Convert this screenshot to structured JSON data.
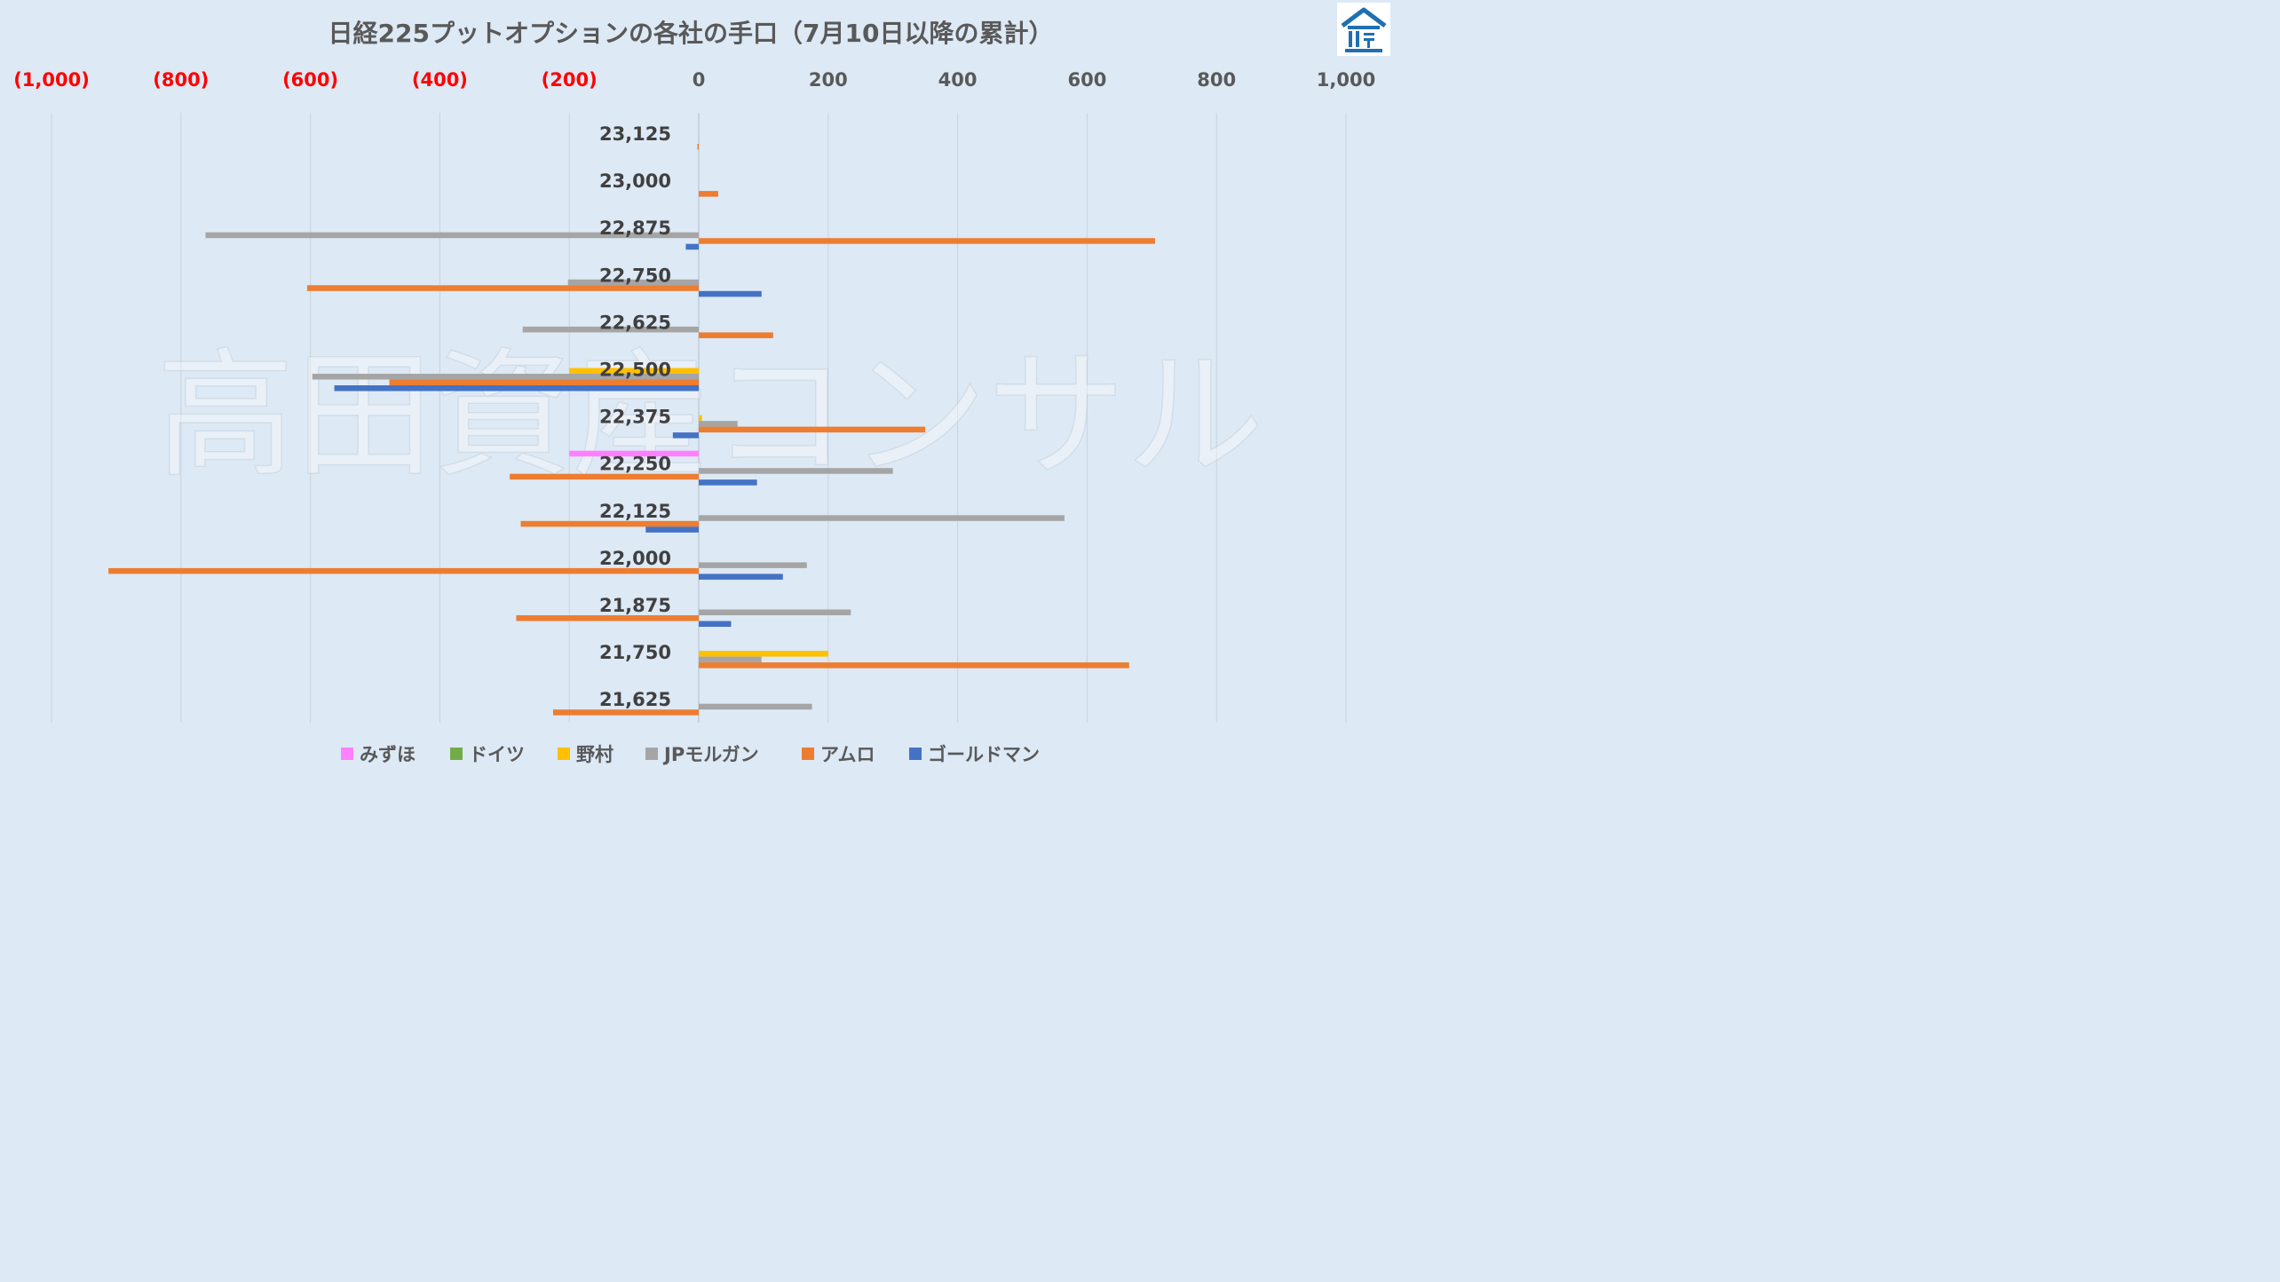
{
  "chart_data": {
    "type": "bar",
    "orientation": "horizontal",
    "title": "日経225プットオプションの各社の手口（7月10日以降の累計）",
    "categories": [
      "23,125",
      "23,000",
      "22,875",
      "22,750",
      "22,625",
      "22,500",
      "22,375",
      "22,250",
      "22,125",
      "22,000",
      "21,875",
      "21,750",
      "21,625"
    ],
    "x_ticks": [
      "(1,000)",
      "(800)",
      "(600)",
      "(400)",
      "(200)",
      "0",
      "200",
      "400",
      "600",
      "800",
      "1,000"
    ],
    "xlim": [
      -1000,
      1000
    ],
    "grid": true,
    "legend_position": "bottom",
    "series": [
      {
        "name": "みずほ",
        "color": "#ff80ff",
        "values": [
          0,
          0,
          0,
          0,
          0,
          0,
          0,
          -200,
          0,
          0,
          0,
          0,
          0
        ]
      },
      {
        "name": "ドイツ",
        "color": "#70ad47",
        "values": [
          0,
          0,
          0,
          0,
          0,
          0,
          0,
          0,
          0,
          0,
          0,
          0,
          0
        ]
      },
      {
        "name": "野村",
        "color": "#ffc000",
        "values": [
          0,
          0,
          0,
          0,
          0,
          -200,
          5,
          0,
          0,
          0,
          0,
          200,
          0
        ]
      },
      {
        "name": "JPモルガン",
        "color": "#a5a5a5",
        "values": [
          0,
          0,
          -762,
          -202,
          -272,
          -597,
          60,
          300,
          565,
          167,
          235,
          97,
          175
        ]
      },
      {
        "name": "アムロ",
        "color": "#ed7d31",
        "values": [
          -2,
          30,
          705,
          -605,
          115,
          -478,
          350,
          -292,
          -275,
          -912,
          -282,
          665,
          -225
        ]
      },
      {
        "name": "ゴールドマン",
        "color": "#4472c4",
        "values": [
          0,
          0,
          -20,
          97,
          0,
          -563,
          -40,
          90,
          -82,
          130,
          50,
          0,
          0
        ]
      }
    ]
  },
  "watermark_text": "高田資産コンサル",
  "logo": {
    "icon": "house-logo-icon",
    "color": "#1f6fb2"
  }
}
